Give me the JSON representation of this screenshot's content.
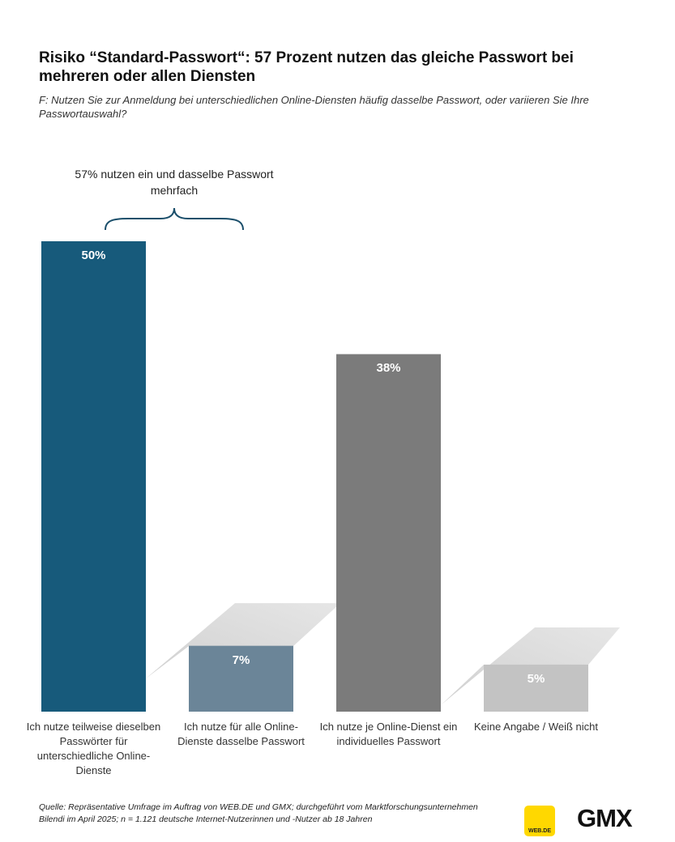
{
  "chart_data": {
    "type": "bar",
    "title": "Risiko “Standard-Passwort“: 57 Prozent nutzen das gleiche Passwort bei mehreren oder allen Diensten",
    "subtitle": "F: Nutzen Sie zur Anmeldung bei unterschiedlichen Online-Diensten häufig dasselbe Passwort, oder variieren Sie Ihre Passwortauswahl?",
    "categories": [
      "Ich nutze teilweise dieselben Passwörter für unterschiedliche Online-Dienste",
      "Ich nutze für alle Online-Dienste dasselbe Passwort",
      "Ich nutze je Online-Dienst ein individuelles Passwort",
      "Keine Angabe / Weiß nicht"
    ],
    "values": [
      50,
      7,
      38,
      5
    ],
    "value_labels": [
      "50%",
      "7%",
      "38%",
      "5%"
    ],
    "colors": [
      "#175a7b",
      "#6b8598",
      "#7b7b7b",
      "#c3c3c3"
    ],
    "annotation": "57% nutzen ein und dasselbe Passwort mehrfach",
    "source": "Quelle: Repräsentative Umfrage im Auftrag von WEB.DE und GMX; durchgeführt vom Marktforschungsunternehmen Bilendi im April 2025; n = 1.121 deutsche Internet-Nutzerinnen und -Nutzer ab 18 Jahren",
    "logos": [
      "WEB.DE",
      "GMX"
    ]
  }
}
